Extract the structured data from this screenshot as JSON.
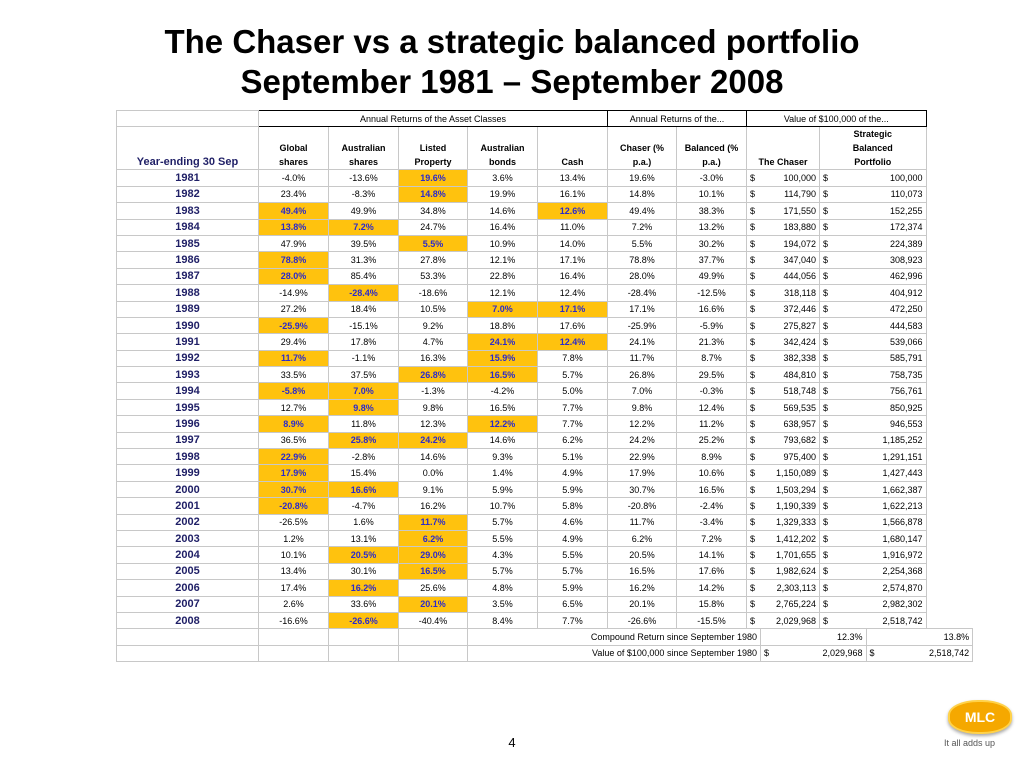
{
  "title": {
    "line1": "The Chaser vs a strategic balanced portfolio",
    "line2": "September 1981 – September 2008"
  },
  "table": {
    "group_headers": {
      "asset_classes": "Annual Returns of the Asset Classes",
      "annual_returns": "Annual Returns of the...",
      "value": "Value of $100,000 of the..."
    },
    "year_header": "Year-ending 30 Sep",
    "columns": {
      "global_shares": [
        "Global",
        "shares"
      ],
      "australian_shares": [
        "Australian",
        "shares"
      ],
      "listed_property": [
        "Listed",
        "Property"
      ],
      "australian_bonds": [
        "Australian",
        "bonds"
      ],
      "cash": [
        "Cash"
      ],
      "chaser": [
        "Chaser    (%",
        "p.a.)"
      ],
      "balanced": [
        "Balanced (%",
        "p.a.)"
      ],
      "the_chaser": [
        "The Chaser"
      ],
      "strategic_balanced": [
        "Strategic",
        "Balanced",
        "Portfolio"
      ]
    },
    "currency_symbol": "$",
    "highlight_color": "#ffc20e",
    "rows": [
      {
        "year": "1981",
        "global": "-4.0%",
        "aus": "-13.6%",
        "prop": "19.6%",
        "bonds": "3.6%",
        "cash": "13.4%",
        "chaser": "19.6%",
        "bal": "-3.0%",
        "v_chaser": "100,000",
        "v_bal": "100,000",
        "hl": "prop"
      },
      {
        "year": "1982",
        "global": "23.4%",
        "aus": "-8.3%",
        "prop": "14.8%",
        "bonds": "19.9%",
        "cash": "16.1%",
        "chaser": "14.8%",
        "bal": "10.1%",
        "v_chaser": "114,790",
        "v_bal": "110,073",
        "hl": "prop"
      },
      {
        "year": "1983",
        "global": "49.4%",
        "aus": "49.9%",
        "prop": "34.8%",
        "bonds": "14.6%",
        "cash": "12.6%",
        "chaser": "49.4%",
        "bal": "38.3%",
        "v_chaser": "171,550",
        "v_bal": "152,255",
        "hl": "global",
        "hl2": "cash"
      },
      {
        "year": "1984",
        "global": "13.8%",
        "aus": "7.2%",
        "prop": "24.7%",
        "bonds": "16.4%",
        "cash": "11.0%",
        "chaser": "7.2%",
        "bal": "13.2%",
        "v_chaser": "183,880",
        "v_bal": "172,374",
        "hl": "aus",
        "hl2": "global"
      },
      {
        "year": "1985",
        "global": "47.9%",
        "aus": "39.5%",
        "prop": "5.5%",
        "bonds": "10.9%",
        "cash": "14.0%",
        "chaser": "5.5%",
        "bal": "30.2%",
        "v_chaser": "194,072",
        "v_bal": "224,389",
        "hl": "prop"
      },
      {
        "year": "1986",
        "global": "78.8%",
        "aus": "31.3%",
        "prop": "27.8%",
        "bonds": "12.1%",
        "cash": "17.1%",
        "chaser": "78.8%",
        "bal": "37.7%",
        "v_chaser": "347,040",
        "v_bal": "308,923",
        "hl": "global"
      },
      {
        "year": "1987",
        "global": "28.0%",
        "aus": "85.4%",
        "prop": "53.3%",
        "bonds": "22.8%",
        "cash": "16.4%",
        "chaser": "28.0%",
        "bal": "49.9%",
        "v_chaser": "444,056",
        "v_bal": "462,996",
        "hl": "global"
      },
      {
        "year": "1988",
        "global": "-14.9%",
        "aus": "-28.4%",
        "prop": "-18.6%",
        "bonds": "12.1%",
        "cash": "12.4%",
        "chaser": "-28.4%",
        "bal": "-12.5%",
        "v_chaser": "318,118",
        "v_bal": "404,912",
        "hl": "aus"
      },
      {
        "year": "1989",
        "global": "27.2%",
        "aus": "18.4%",
        "prop": "10.5%",
        "bonds": "7.0%",
        "cash": "17.1%",
        "chaser": "17.1%",
        "bal": "16.6%",
        "v_chaser": "372,446",
        "v_bal": "472,250",
        "hl": "cash",
        "hl2": "bonds"
      },
      {
        "year": "1990",
        "global": "-25.9%",
        "aus": "-15.1%",
        "prop": "9.2%",
        "bonds": "18.8%",
        "cash": "17.6%",
        "chaser": "-25.9%",
        "bal": "-5.9%",
        "v_chaser": "275,827",
        "v_bal": "444,583",
        "hl": "global"
      },
      {
        "year": "1991",
        "global": "29.4%",
        "aus": "17.8%",
        "prop": "4.7%",
        "bonds": "24.1%",
        "cash": "12.4%",
        "chaser": "24.1%",
        "bal": "21.3%",
        "v_chaser": "342,424",
        "v_bal": "539,066",
        "hl": "bonds",
        "hl2": "cash"
      },
      {
        "year": "1992",
        "global": "11.7%",
        "aus": "-1.1%",
        "prop": "16.3%",
        "bonds": "15.9%",
        "cash": "7.8%",
        "chaser": "11.7%",
        "bal": "8.7%",
        "v_chaser": "382,338",
        "v_bal": "585,791",
        "hl": "global",
        "hl2": "bonds"
      },
      {
        "year": "1993",
        "global": "33.5%",
        "aus": "37.5%",
        "prop": "26.8%",
        "bonds": "16.5%",
        "cash": "5.7%",
        "chaser": "26.8%",
        "bal": "29.5%",
        "v_chaser": "484,810",
        "v_bal": "758,735",
        "hl": "prop",
        "hl2": "bonds"
      },
      {
        "year": "1994",
        "global": "-5.8%",
        "aus": "7.0%",
        "prop": "-1.3%",
        "bonds": "-4.2%",
        "cash": "5.0%",
        "chaser": "7.0%",
        "bal": "-0.3%",
        "v_chaser": "518,748",
        "v_bal": "756,761",
        "hl": "aus",
        "hl2": "global"
      },
      {
        "year": "1995",
        "global": "12.7%",
        "aus": "9.8%",
        "prop": "9.8%",
        "bonds": "16.5%",
        "cash": "7.7%",
        "chaser": "9.8%",
        "bal": "12.4%",
        "v_chaser": "569,535",
        "v_bal": "850,925",
        "hl": "aus"
      },
      {
        "year": "1996",
        "global": "8.9%",
        "aus": "11.8%",
        "prop": "12.3%",
        "bonds": "12.2%",
        "cash": "7.7%",
        "chaser": "12.2%",
        "bal": "11.2%",
        "v_chaser": "638,957",
        "v_bal": "946,553",
        "hl": "bonds",
        "hl2": "global"
      },
      {
        "year": "1997",
        "global": "36.5%",
        "aus": "25.8%",
        "prop": "24.2%",
        "bonds": "14.6%",
        "cash": "6.2%",
        "chaser": "24.2%",
        "bal": "25.2%",
        "v_chaser": "793,682",
        "v_bal": "1,185,252",
        "hl": "prop",
        "hl2": "aus"
      },
      {
        "year": "1998",
        "global": "22.9%",
        "aus": "-2.8%",
        "prop": "14.6%",
        "bonds": "9.3%",
        "cash": "5.1%",
        "chaser": "22.9%",
        "bal": "8.9%",
        "v_chaser": "975,400",
        "v_bal": "1,291,151",
        "hl": "global"
      },
      {
        "year": "1999",
        "global": "17.9%",
        "aus": "15.4%",
        "prop": "0.0%",
        "bonds": "1.4%",
        "cash": "4.9%",
        "chaser": "17.9%",
        "bal": "10.6%",
        "v_chaser": "1,150,089",
        "v_bal": "1,427,443",
        "hl": "global"
      },
      {
        "year": "2000",
        "global": "30.7%",
        "aus": "16.6%",
        "prop": "9.1%",
        "bonds": "5.9%",
        "cash": "5.9%",
        "chaser": "30.7%",
        "bal": "16.5%",
        "v_chaser": "1,503,294",
        "v_bal": "1,662,387",
        "hl": "global",
        "hl2": "aus"
      },
      {
        "year": "2001",
        "global": "-20.8%",
        "aus": "-4.7%",
        "prop": "16.2%",
        "bonds": "10.7%",
        "cash": "5.8%",
        "chaser": "-20.8%",
        "bal": "-2.4%",
        "v_chaser": "1,190,339",
        "v_bal": "1,622,213",
        "hl": "global"
      },
      {
        "year": "2002",
        "global": "-26.5%",
        "aus": "1.6%",
        "prop": "11.7%",
        "bonds": "5.7%",
        "cash": "4.6%",
        "chaser": "11.7%",
        "bal": "-3.4%",
        "v_chaser": "1,329,333",
        "v_bal": "1,566,878",
        "hl": "prop"
      },
      {
        "year": "2003",
        "global": "1.2%",
        "aus": "13.1%",
        "prop": "6.2%",
        "bonds": "5.5%",
        "cash": "4.9%",
        "chaser": "6.2%",
        "bal": "7.2%",
        "v_chaser": "1,412,202",
        "v_bal": "1,680,147",
        "hl": "prop"
      },
      {
        "year": "2004",
        "global": "10.1%",
        "aus": "20.5%",
        "prop": "29.0%",
        "bonds": "4.3%",
        "cash": "5.5%",
        "chaser": "20.5%",
        "bal": "14.1%",
        "v_chaser": "1,701,655",
        "v_bal": "1,916,972",
        "hl": "aus",
        "hl2": "prop"
      },
      {
        "year": "2005",
        "global": "13.4%",
        "aus": "30.1%",
        "prop": "16.5%",
        "bonds": "5.7%",
        "cash": "5.7%",
        "chaser": "16.5%",
        "bal": "17.6%",
        "v_chaser": "1,982,624",
        "v_bal": "2,254,368",
        "hl": "prop"
      },
      {
        "year": "2006",
        "global": "17.4%",
        "aus": "16.2%",
        "prop": "25.6%",
        "bonds": "4.8%",
        "cash": "5.9%",
        "chaser": "16.2%",
        "bal": "14.2%",
        "v_chaser": "2,303,113",
        "v_bal": "2,574,870",
        "hl": "aus"
      },
      {
        "year": "2007",
        "global": "2.6%",
        "aus": "33.6%",
        "prop": "20.1%",
        "bonds": "3.5%",
        "cash": "6.5%",
        "chaser": "20.1%",
        "bal": "15.8%",
        "v_chaser": "2,765,224",
        "v_bal": "2,982,302",
        "hl": "prop"
      },
      {
        "year": "2008",
        "global": "-16.6%",
        "aus": "-26.6%",
        "prop": "-40.4%",
        "bonds": "8.4%",
        "cash": "7.7%",
        "chaser": "-26.6%",
        "bal": "-15.5%",
        "v_chaser": "2,029,968",
        "v_bal": "2,518,742",
        "hl": "aus"
      }
    ],
    "summary": {
      "compound_label": "Compound Return since September 1980",
      "compound_chaser": "12.3%",
      "compound_bal": "13.8%",
      "value_label": "Value of $100,000 since September 1980",
      "value_chaser": "2,029,968",
      "value_bal": "2,518,742"
    }
  },
  "page_number": "4",
  "logo": {
    "brand": "MLC",
    "tagline": "It all adds up",
    "color": "#f5a800"
  }
}
